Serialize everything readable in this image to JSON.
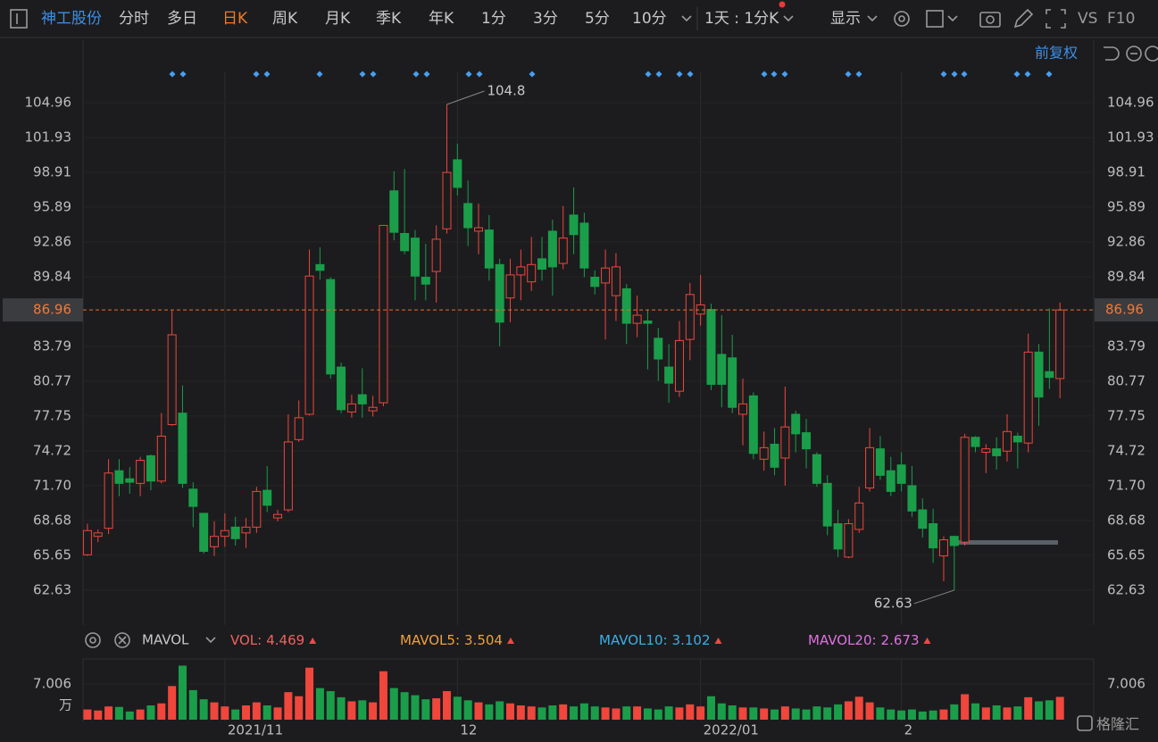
{
  "toolbar": {
    "stock": "神工股份",
    "tabs": [
      "分时",
      "多日",
      "日K",
      "周K",
      "月K",
      "季K",
      "年K",
      "1分",
      "3分",
      "5分",
      "10分"
    ],
    "period": "1天 : 1分K",
    "display": "显示",
    "vs": "VS",
    "f10": "F10"
  },
  "adjust": "前复权",
  "watermark": "格隆汇",
  "chart_data": [
    {
      "type": "candlestick",
      "up_color": "#f0463c",
      "down_color": "#1a9e4a",
      "grid": true,
      "categories": [
        null,
        null,
        null,
        null,
        null,
        null,
        null,
        null,
        null,
        null,
        null,
        null,
        null,
        "2021/11",
        null,
        null,
        null,
        null,
        null,
        null,
        null,
        null,
        null,
        null,
        null,
        null,
        null,
        null,
        null,
        null,
        null,
        null,
        null,
        null,
        null,
        "12",
        null,
        null,
        null,
        null,
        null,
        null,
        null,
        null,
        null,
        null,
        null,
        null,
        null,
        null,
        null,
        null,
        null,
        null,
        null,
        null,
        null,
        null,
        "2022/01",
        null,
        null,
        null,
        null,
        null,
        null,
        null,
        null,
        null,
        null,
        null,
        null,
        null,
        null,
        null,
        null,
        null,
        null,
        "2",
        null,
        null,
        null,
        null,
        null,
        null,
        null,
        null,
        null,
        null,
        null,
        null,
        null,
        null,
        null
      ],
      "ohlc": [
        [
          65.7,
          68.4,
          65.6,
          67.8
        ],
        [
          67.3,
          67.9,
          66.8,
          67.6
        ],
        [
          68.0,
          74.0,
          67.5,
          72.8
        ],
        [
          73.0,
          74.0,
          70.8,
          71.9
        ],
        [
          72.3,
          73.3,
          71.0,
          72.0
        ],
        [
          71.9,
          74.2,
          70.8,
          73.9
        ],
        [
          74.3,
          74.4,
          71.3,
          72.1
        ],
        [
          72.1,
          78.0,
          71.9,
          76.0
        ],
        [
          77.0,
          86.9,
          76.9,
          84.8
        ],
        [
          78.0,
          80.4,
          71.5,
          71.9
        ],
        [
          71.4,
          72.0,
          68.1,
          69.9
        ],
        [
          69.3,
          69.3,
          65.8,
          66.0
        ],
        [
          66.4,
          68.6,
          65.6,
          67.3
        ],
        [
          67.3,
          69.3,
          66.4,
          67.8
        ],
        [
          68.1,
          69.0,
          66.5,
          67.1
        ],
        [
          67.6,
          68.9,
          66.3,
          68.1
        ],
        [
          68.1,
          71.6,
          67.6,
          71.2
        ],
        [
          71.3,
          73.4,
          69.4,
          70.0
        ],
        [
          68.9,
          69.6,
          68.6,
          69.2
        ],
        [
          69.6,
          77.9,
          69.4,
          75.5
        ],
        [
          75.7,
          79.1,
          75.5,
          77.6
        ],
        [
          77.9,
          92.2,
          77.8,
          89.9
        ],
        [
          90.9,
          92.4,
          89.6,
          90.4
        ],
        [
          89.6,
          89.8,
          81.0,
          81.4
        ],
        [
          82.0,
          82.4,
          78.0,
          78.3
        ],
        [
          78.1,
          79.6,
          77.6,
          78.8
        ],
        [
          79.6,
          81.9,
          77.6,
          78.8
        ],
        [
          78.2,
          79.5,
          77.7,
          78.5
        ],
        [
          78.9,
          94.3,
          78.6,
          94.3
        ],
        [
          97.3,
          99.0,
          93.0,
          93.7
        ],
        [
          93.6,
          99.2,
          91.8,
          92.1
        ],
        [
          93.2,
          93.9,
          87.8,
          89.9
        ],
        [
          89.8,
          92.7,
          87.8,
          89.2
        ],
        [
          90.3,
          94.3,
          87.6,
          93.1
        ],
        [
          94.0,
          104.8,
          93.6,
          98.9
        ],
        [
          100.0,
          101.4,
          96.9,
          97.6
        ],
        [
          96.2,
          98.2,
          92.5,
          94.1
        ],
        [
          93.8,
          96.2,
          91.8,
          94.1
        ],
        [
          93.9,
          95.2,
          89.5,
          90.6
        ],
        [
          90.9,
          91.4,
          83.8,
          85.9
        ],
        [
          88.0,
          91.4,
          85.9,
          90.0
        ],
        [
          90.0,
          92.2,
          87.8,
          90.7
        ],
        [
          89.4,
          93.3,
          88.6,
          90.9
        ],
        [
          91.4,
          93.3,
          89.5,
          90.5
        ],
        [
          93.8,
          94.8,
          88.2,
          90.7
        ],
        [
          91.0,
          96.0,
          90.5,
          93.2
        ],
        [
          95.2,
          97.6,
          91.8,
          93.5
        ],
        [
          94.5,
          95.4,
          89.8,
          90.6
        ],
        [
          89.8,
          90.4,
          88.3,
          89.0
        ],
        [
          89.3,
          92.2,
          84.4,
          90.6
        ],
        [
          88.2,
          91.9,
          86.0,
          90.7
        ],
        [
          88.8,
          89.2,
          84.0,
          85.8
        ],
        [
          85.8,
          88.2,
          84.6,
          86.5
        ],
        [
          86.0,
          87.0,
          81.8,
          85.8
        ],
        [
          84.5,
          85.4,
          80.8,
          82.7
        ],
        [
          82.0,
          84.0,
          78.9,
          80.6
        ],
        [
          79.9,
          86.0,
          79.4,
          84.3
        ],
        [
          84.4,
          89.3,
          82.6,
          88.3
        ],
        [
          86.6,
          90.0,
          85.6,
          87.4
        ],
        [
          87.0,
          87.5,
          80.0,
          80.5
        ],
        [
          83.1,
          86.5,
          78.5,
          80.5
        ],
        [
          82.8,
          84.8,
          78.0,
          78.5
        ],
        [
          77.9,
          81.0,
          75.2,
          78.8
        ],
        [
          79.5,
          79.8,
          74.0,
          74.5
        ],
        [
          74.0,
          76.4,
          73.0,
          75.0
        ],
        [
          75.3,
          76.7,
          72.6,
          73.3
        ],
        [
          74.1,
          80.3,
          71.7,
          76.8
        ],
        [
          77.9,
          78.2,
          74.6,
          76.2
        ],
        [
          76.3,
          77.5,
          73.2,
          74.9
        ],
        [
          74.4,
          74.6,
          71.6,
          71.9
        ],
        [
          71.9,
          72.6,
          67.4,
          68.2
        ],
        [
          68.4,
          69.6,
          65.5,
          66.2
        ],
        [
          65.5,
          68.8,
          65.4,
          68.4
        ],
        [
          67.9,
          71.6,
          67.6,
          70.2
        ],
        [
          71.5,
          76.7,
          71.2,
          75.0
        ],
        [
          74.9,
          76.0,
          72.2,
          72.6
        ],
        [
          73.0,
          74.2,
          70.8,
          71.2
        ],
        [
          73.5,
          74.6,
          71.2,
          71.9
        ],
        [
          71.7,
          73.4,
          69.0,
          69.5
        ],
        [
          69.6,
          70.6,
          67.2,
          68.0
        ],
        [
          68.4,
          69.7,
          65.0,
          66.3
        ],
        [
          65.6,
          67.3,
          63.4,
          67.0
        ],
        [
          67.3,
          67.3,
          62.63,
          66.5
        ],
        [
          66.8,
          76.2,
          66.5,
          75.9
        ],
        [
          75.9,
          76.0,
          74.6,
          75.1
        ],
        [
          74.6,
          75.3,
          72.8,
          74.9
        ],
        [
          74.9,
          75.9,
          73.1,
          74.3
        ],
        [
          74.7,
          77.9,
          73.8,
          76.4
        ],
        [
          76.0,
          76.3,
          73.2,
          75.5
        ],
        [
          75.4,
          84.9,
          74.6,
          83.3
        ],
        [
          83.3,
          84.0,
          76.9,
          79.4
        ],
        [
          81.6,
          87.1,
          80.1,
          81.1
        ],
        [
          81.0,
          87.6,
          79.3,
          86.96
        ]
      ],
      "ylim": [
        59.6,
        107.67
      ],
      "yticks": [
        104.96,
        101.93,
        98.91,
        95.89,
        92.86,
        89.84,
        83.79,
        80.77,
        77.75,
        74.72,
        {
          "value": 71.7,
          "label": "71.70"
        },
        68.68,
        65.65,
        62.63
      ],
      "last_price": 86.96,
      "annotations": [
        104.8,
        62.63
      ]
    },
    {
      "type": "bar",
      "indicator": "MAVOL",
      "unit": "万",
      "legend": [
        {
          "name": "VOL:",
          "value": 4.469,
          "color": "#f26060"
        },
        {
          "name": "MAVOL5:",
          "value": 3.504,
          "color": "#f0a040"
        },
        {
          "name": "MAVOL10:",
          "value": 3.102,
          "color": "#38b0e8"
        },
        {
          "name": "MAVOL20:",
          "value": 2.673,
          "color": "#e070e0"
        }
      ],
      "values": [
        2.0,
        1.8,
        2.6,
        2.5,
        1.6,
        2.0,
        2.8,
        3.2,
        6.6,
        10.6,
        5.8,
        4.0,
        3.4,
        2.6,
        2.0,
        2.8,
        3.4,
        2.8,
        2.4,
        5.4,
        4.6,
        10.2,
        6.2,
        5.6,
        4.4,
        3.6,
        3.8,
        3.4,
        9.5,
        6.2,
        5.4,
        4.8,
        4.0,
        4.2,
        5.6,
        4.5,
        3.8,
        3.4,
        3.0,
        3.6,
        3.2,
        2.8,
        2.6,
        2.4,
        2.8,
        3.0,
        2.6,
        3.2,
        2.6,
        2.4,
        2.2,
        2.6,
        2.6,
        2.2,
        2.0,
        2.6,
        2.4,
        3.0,
        2.6,
        4.6,
        3.2,
        2.8,
        2.4,
        2.4,
        2.2,
        2.0,
        2.6,
        2.2,
        2.0,
        2.6,
        2.4,
        3.0,
        3.6,
        4.5,
        3.4,
        2.4,
        2.0,
        1.8,
        2.0,
        1.6,
        1.8,
        2.0,
        3.0,
        5.0,
        3.2,
        2.4,
        2.8,
        2.4,
        2.6,
        4.4,
        3.6,
        3.8,
        4.469
      ],
      "ylim": [
        0,
        11.56
      ],
      "yticks": [
        7.006
      ]
    }
  ]
}
